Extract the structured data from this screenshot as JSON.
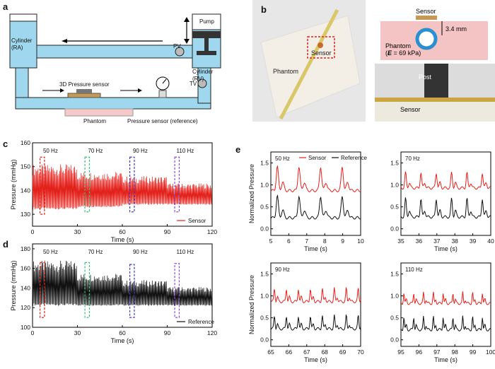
{
  "panels": {
    "a": "a",
    "b": "b",
    "c": "c",
    "d": "d",
    "e": "e"
  },
  "schematic": {
    "cyl_ra": "Cylinder\n(RA)",
    "cyl_rv": "Cylinder\n(RV)",
    "pump": "Pump",
    "pv": "PV",
    "tv": "TV",
    "sensor3d": "3D Pressure sensor",
    "phantom": "Phantom",
    "ref_sensor": "Pressure sensor (reference)"
  },
  "photos": {
    "phantom": "Phantom",
    "sensor": "Sensor",
    "sensor_top": "Sensor",
    "depth": "3.4 mm",
    "phantom_mod_1": "Phantom",
    "phantom_mod_2": "(",
    "phantom_mod_3": "E",
    "phantom_mod_4": " = 69 kPa)",
    "post": "Post",
    "sensor_bottom": "Sensor"
  },
  "colors": {
    "water": "#9fd8ee",
    "water_stroke": "#222",
    "red": "#e3211b",
    "green": "#3cc07a",
    "blue": "#3a3ac4",
    "purple": "#8a4bd6",
    "black": "#111"
  },
  "chart_data": [
    {
      "id": "c",
      "type": "line",
      "ylabel": "Pressure (mmHg)",
      "xlabel": "Time (s)",
      "xlim": [
        0,
        120
      ],
      "ylim": [
        125,
        160
      ],
      "xticks": [
        0,
        30,
        60,
        90,
        120
      ],
      "yticks": [
        130,
        140,
        150,
        160
      ],
      "freq_labels": [
        "50 Hz",
        "70 Hz",
        "90 Hz",
        "110 Hz"
      ],
      "freq_x": [
        12,
        42,
        72,
        102
      ],
      "boxes": [
        {
          "x0": 5,
          "x1": 8,
          "y0": 130,
          "y1": 154
        },
        {
          "x0": 35,
          "x1": 38,
          "y0": 131,
          "y1": 154
        },
        {
          "x0": 65,
          "x1": 68,
          "y0": 131,
          "y1": 154
        },
        {
          "x0": 95,
          "x1": 98,
          "y0": 131,
          "y1": 154
        }
      ],
      "legend": "Sensor",
      "series": [
        {
          "name": "Sensor",
          "segments": [
            {
              "t0": 0,
              "t1": 30,
              "lo": 132,
              "hi": 151
            },
            {
              "t0": 30,
              "t1": 60,
              "lo": 133,
              "hi": 148
            },
            {
              "t0": 60,
              "t1": 90,
              "lo": 134,
              "hi": 146
            },
            {
              "t0": 90,
              "t1": 120,
              "lo": 134,
              "hi": 143
            }
          ]
        }
      ]
    },
    {
      "id": "d",
      "type": "line",
      "ylabel": "Pressure (mmHg)",
      "xlabel": "Time (s)",
      "xlim": [
        0,
        120
      ],
      "ylim": [
        100,
        185
      ],
      "xticks": [
        0,
        30,
        60,
        90,
        120
      ],
      "yticks": [
        100,
        120,
        140,
        160,
        180
      ],
      "freq_labels": [
        "50 Hz",
        "70 Hz",
        "90 Hz",
        "110 Hz"
      ],
      "freq_x": [
        12,
        42,
        72,
        102
      ],
      "boxes": [
        {
          "x0": 5,
          "x1": 8,
          "y0": 110,
          "y1": 166
        },
        {
          "x0": 35,
          "x1": 38,
          "y0": 110,
          "y1": 166
        },
        {
          "x0": 65,
          "x1": 68,
          "y0": 110,
          "y1": 164
        },
        {
          "x0": 95,
          "x1": 98,
          "y0": 110,
          "y1": 165
        }
      ],
      "legend": "Reference",
      "series": [
        {
          "name": "Reference",
          "segments": [
            {
              "t0": 0,
              "t1": 30,
              "lo": 122,
              "hi": 168
            },
            {
              "t0": 30,
              "t1": 60,
              "lo": 122,
              "hi": 155
            },
            {
              "t0": 60,
              "t1": 90,
              "lo": 122,
              "hi": 148
            },
            {
              "t0": 90,
              "t1": 120,
              "lo": 122,
              "hi": 141
            }
          ]
        }
      ]
    },
    {
      "id": "e1",
      "type": "line",
      "ylabel": "Normalized Pressure",
      "xlabel": "Time (s)",
      "xlim": [
        5,
        10
      ],
      "ylim": [
        -0.15,
        1.75
      ],
      "xticks": [
        5,
        6,
        7,
        8,
        9,
        10
      ],
      "yticks": [
        0.0,
        0.5,
        1.0,
        1.5
      ],
      "label": "50 Hz",
      "legend": [
        "Sensor",
        "Reference"
      ],
      "freq": 0.83,
      "series": [
        {
          "name": "Sensor",
          "base": 0.92,
          "amp": 0.55
        },
        {
          "name": "Reference",
          "base": 0.3,
          "amp": 0.5
        }
      ]
    },
    {
      "id": "e2",
      "type": "line",
      "ylabel": "",
      "xlabel": "Time (s)",
      "xlim": [
        35,
        40
      ],
      "ylim": [
        -0.15,
        1.75
      ],
      "xticks": [
        35,
        36,
        37,
        38,
        39,
        40
      ],
      "yticks": [
        0.0,
        0.5,
        1.0,
        1.5
      ],
      "label": "70 Hz",
      "freq": 1.17,
      "series": [
        {
          "name": "Sensor",
          "base": 0.98,
          "amp": 0.35
        },
        {
          "name": "Reference",
          "base": 0.32,
          "amp": 0.42
        }
      ]
    },
    {
      "id": "e3",
      "type": "line",
      "ylabel": "Normalized Pressure",
      "xlabel": "Time (s)",
      "xlim": [
        65,
        70
      ],
      "ylim": [
        -0.15,
        1.75
      ],
      "xticks": [
        65,
        66,
        67,
        68,
        69,
        70
      ],
      "yticks": [
        0.0,
        0.5,
        1.0,
        1.5
      ],
      "label": "90 Hz",
      "freq": 1.5,
      "series": [
        {
          "name": "Sensor",
          "base": 0.92,
          "amp": 0.3
        },
        {
          "name": "Reference",
          "base": 0.3,
          "amp": 0.3
        }
      ]
    },
    {
      "id": "e4",
      "type": "line",
      "ylabel": "",
      "xlabel": "Time (s)",
      "xlim": [
        95,
        100
      ],
      "ylim": [
        -0.15,
        1.75
      ],
      "xticks": [
        95,
        96,
        97,
        98,
        99,
        100
      ],
      "yticks": [
        0.0,
        0.5,
        1.0,
        1.5
      ],
      "label": "110 Hz",
      "freq": 1.83,
      "series": [
        {
          "name": "Sensor",
          "base": 0.88,
          "amp": 0.25
        },
        {
          "name": "Reference",
          "base": 0.28,
          "amp": 0.3
        }
      ]
    }
  ]
}
